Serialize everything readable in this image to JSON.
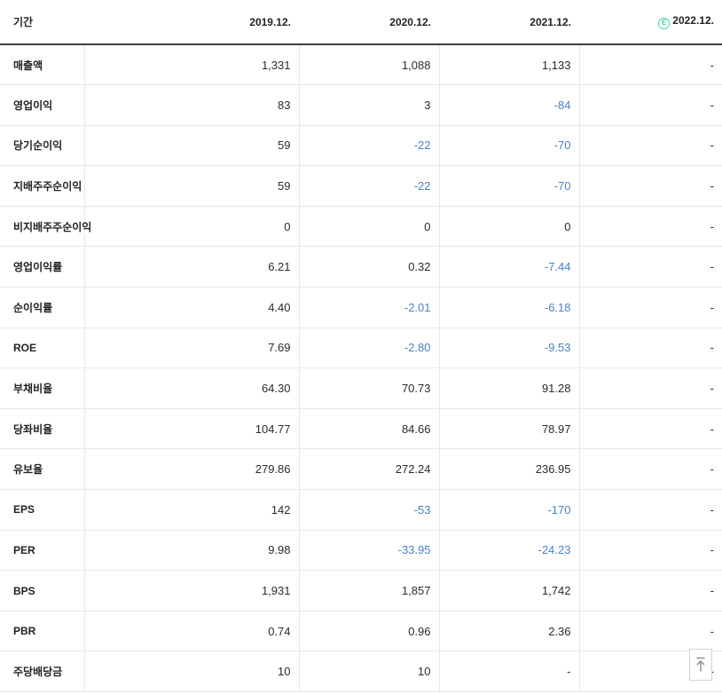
{
  "colors": {
    "negative_value": "#4a82c6",
    "estimate_green": "#3fcfa0",
    "header_border": "#3f3f3f",
    "row_border": "#e8e8e8",
    "text": "#222222"
  },
  "table": {
    "header": {
      "period_label": "기간",
      "columns": [
        "2019.12.",
        "2020.12.",
        "2021.12.",
        "2022.12."
      ],
      "estimate_icon": "E",
      "estimate_column_index": 3
    },
    "rows": [
      {
        "label": "매출액",
        "values": [
          "1,331",
          "1,088",
          "1,133",
          "-"
        ]
      },
      {
        "label": "영업이익",
        "values": [
          "83",
          "3",
          "-84",
          "-"
        ]
      },
      {
        "label": "당기순이익",
        "values": [
          "59",
          "-22",
          "-70",
          "-"
        ]
      },
      {
        "label": "지배주주순이익",
        "values": [
          "59",
          "-22",
          "-70",
          "-"
        ]
      },
      {
        "label": "비지배주주순이익",
        "values": [
          "0",
          "0",
          "0",
          "-"
        ]
      },
      {
        "label": "영업이익률",
        "values": [
          "6.21",
          "0.32",
          "-7.44",
          "-"
        ]
      },
      {
        "label": "순이익률",
        "values": [
          "4.40",
          "-2.01",
          "-6.18",
          "-"
        ]
      },
      {
        "label": "ROE",
        "values": [
          "7.69",
          "-2.80",
          "-9.53",
          "-"
        ]
      },
      {
        "label": "부채비율",
        "values": [
          "64.30",
          "70.73",
          "91.28",
          "-"
        ]
      },
      {
        "label": "당좌비율",
        "values": [
          "104.77",
          "84.66",
          "78.97",
          "-"
        ]
      },
      {
        "label": "유보율",
        "values": [
          "279.86",
          "272.24",
          "236.95",
          "-"
        ]
      },
      {
        "label": "EPS",
        "values": [
          "142",
          "-53",
          "-170",
          "-"
        ]
      },
      {
        "label": "PER",
        "values": [
          "9.98",
          "-33.95",
          "-24.23",
          "-"
        ]
      },
      {
        "label": "BPS",
        "values": [
          "1,931",
          "1,857",
          "1,742",
          "-"
        ]
      },
      {
        "label": "PBR",
        "values": [
          "0.74",
          "0.96",
          "2.36",
          "-"
        ]
      },
      {
        "label": "주당배당금",
        "values": [
          "10",
          "10",
          "-",
          "-"
        ]
      }
    ]
  },
  "scroll_top_button": {
    "icon_name": "arrow-up-to-top-icon"
  }
}
